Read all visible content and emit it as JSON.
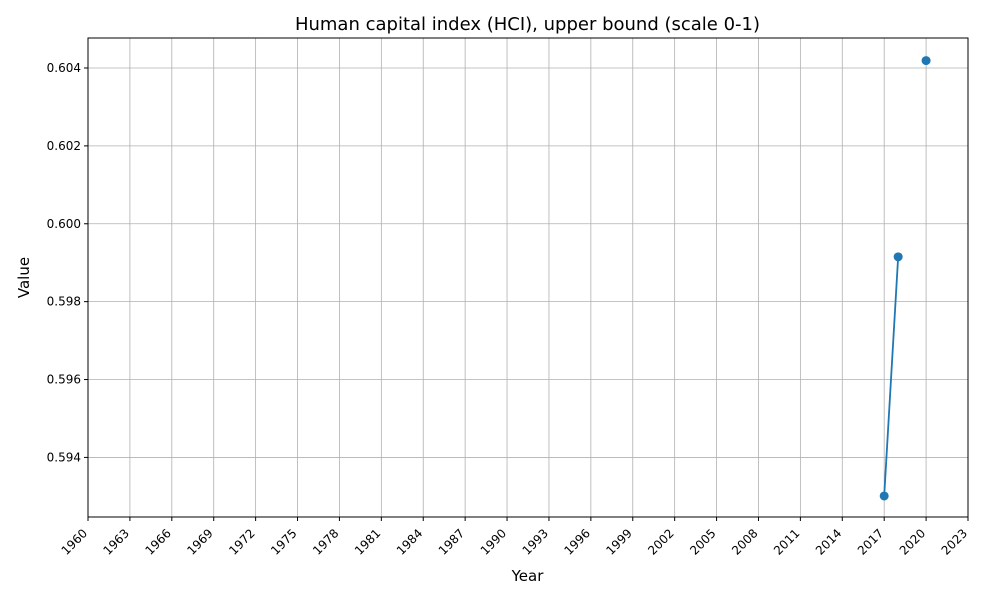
{
  "chart_data": {
    "type": "line",
    "title": "Human capital index (HCI), upper bound (scale 0-1)",
    "xlabel": "Year",
    "ylabel": "Value",
    "grid": true,
    "series_color": "#1f77b4",
    "xlim": [
      1960,
      2023
    ],
    "ylim": [
      0.59247,
      0.60477
    ],
    "x_ticks": [
      1960,
      1963,
      1966,
      1969,
      1972,
      1975,
      1978,
      1981,
      1984,
      1987,
      1990,
      1993,
      1996,
      1999,
      2002,
      2005,
      2008,
      2011,
      2014,
      2017,
      2020,
      2023
    ],
    "x_tick_labels": [
      "1960",
      "1963",
      "1966",
      "1969",
      "1972",
      "1975",
      "1978",
      "1981",
      "1984",
      "1987",
      "1990",
      "1993",
      "1996",
      "1999",
      "2002",
      "2005",
      "2008",
      "2011",
      "2014",
      "2017",
      "2020",
      "2023"
    ],
    "y_ticks": [
      0.594,
      0.596,
      0.598,
      0.6,
      0.602,
      0.604
    ],
    "y_tick_labels": [
      "0.594",
      "0.596",
      "0.598",
      "0.600",
      "0.602",
      "0.604"
    ],
    "series": [
      {
        "x": [
          2017,
          2018,
          2020
        ],
        "values": [
          0.59301,
          0.59915,
          0.60419
        ],
        "segments": [
          [
            0,
            1
          ],
          [
            2
          ]
        ]
      }
    ]
  }
}
